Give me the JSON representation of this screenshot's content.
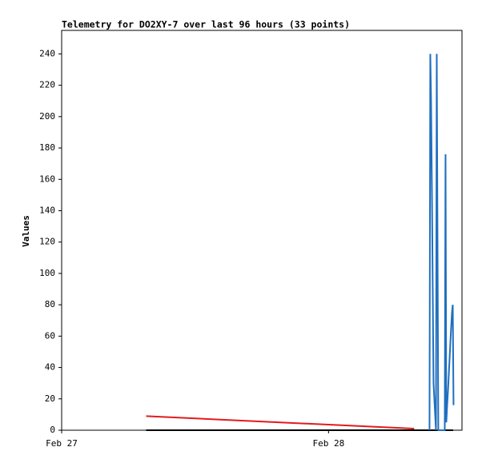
{
  "chart_data": {
    "type": "line",
    "title": "Telemetry for DO2XY-7 over last 96 hours (33 points)",
    "y_label": "Values",
    "xlim": [
      0,
      36
    ],
    "xticks": [
      {
        "value": 0,
        "label": "Feb 27"
      },
      {
        "value": 24,
        "label": "Feb 28"
      }
    ],
    "ylim": [
      0,
      255
    ],
    "yticks": [
      0,
      20,
      40,
      60,
      80,
      100,
      120,
      140,
      160,
      180,
      200,
      220,
      240
    ],
    "series": [
      {
        "color": "#e31a1c",
        "x": [
          7.6,
          31.7
        ],
        "values": [
          9,
          1
        ]
      },
      {
        "color": "#000000",
        "x": [
          7.6,
          35.2
        ],
        "values": [
          0,
          0
        ]
      },
      {
        "color": "#1f6fbf",
        "x": [
          33.08,
          33.15,
          33.22,
          33.3,
          33.37,
          33.44,
          33.66,
          33.73,
          33.8,
          33.87,
          34.45,
          34.52,
          34.59,
          34.66,
          34.74,
          34.81,
          34.88,
          34.95,
          35.02,
          35.1,
          35.17,
          35.24
        ],
        "values": [
          0,
          240,
          210,
          150,
          90,
          30,
          0,
          240,
          120,
          0,
          0,
          176,
          5,
          15,
          25,
          35,
          45,
          55,
          65,
          75,
          80,
          16
        ]
      }
    ]
  }
}
